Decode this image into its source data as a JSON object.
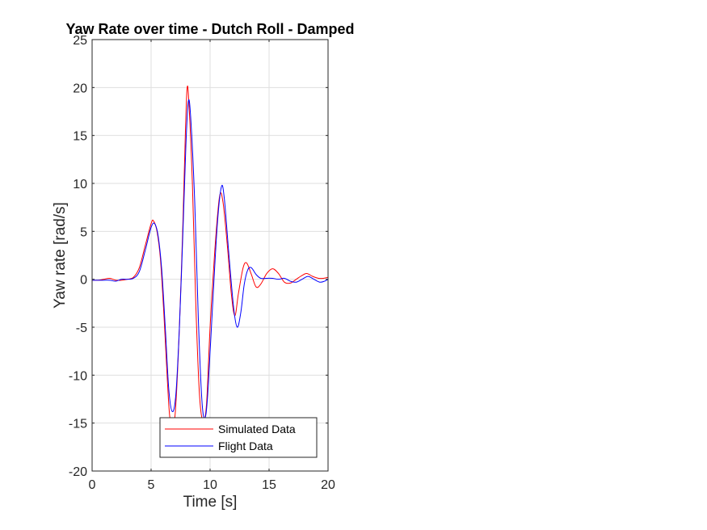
{
  "chart_data": {
    "type": "line",
    "title": "Yaw Rate over time - Dutch Roll - Damped",
    "xlabel": "Time [s]",
    "ylabel": "Yaw rate [rad/s]",
    "xlim": [
      0,
      20
    ],
    "ylim": [
      -20,
      25
    ],
    "xticks": [
      0,
      5,
      10,
      15,
      20
    ],
    "yticks": [
      -20,
      -15,
      -10,
      -5,
      0,
      5,
      10,
      15,
      20,
      25
    ],
    "grid": true,
    "legend_position": "bottom-center",
    "series": [
      {
        "name": "Simulated Data",
        "color": "#ff0000",
        "points": [
          [
            0,
            -0.1
          ],
          [
            0.5,
            -0.1
          ],
          [
            1,
            0
          ],
          [
            1.5,
            0.1
          ],
          [
            2,
            -0.1
          ],
          [
            2.5,
            -0.1
          ],
          [
            3,
            0
          ],
          [
            3.5,
            0.2
          ],
          [
            4,
            1.2
          ],
          [
            4.5,
            3.5
          ],
          [
            5,
            5.8
          ],
          [
            5.2,
            6.1
          ],
          [
            5.5,
            5.0
          ],
          [
            5.8,
            2.0
          ],
          [
            6.1,
            -4.0
          ],
          [
            6.4,
            -11.0
          ],
          [
            6.6,
            -14.5
          ],
          [
            6.9,
            -15.0
          ],
          [
            7.1,
            -13.0
          ],
          [
            7.4,
            -5.0
          ],
          [
            7.7,
            6.0
          ],
          [
            7.9,
            15.0
          ],
          [
            8.05,
            19.9
          ],
          [
            8.2,
            18.5
          ],
          [
            8.5,
            10.0
          ],
          [
            8.8,
            -3.0
          ],
          [
            9.1,
            -12.0
          ],
          [
            9.4,
            -14.8
          ],
          [
            9.7,
            -13.0
          ],
          [
            10.0,
            -5.0
          ],
          [
            10.4,
            3.0
          ],
          [
            10.8,
            8.6
          ],
          [
            11.1,
            8.0
          ],
          [
            11.5,
            3.0
          ],
          [
            11.8,
            -1.5
          ],
          [
            12.1,
            -3.8
          ],
          [
            12.4,
            -1.5
          ],
          [
            12.8,
            1.2
          ],
          [
            13.1,
            1.7
          ],
          [
            13.5,
            0.5
          ],
          [
            13.9,
            -0.8
          ],
          [
            14.3,
            -0.5
          ],
          [
            14.8,
            0.6
          ],
          [
            15.3,
            1.1
          ],
          [
            15.8,
            0.6
          ],
          [
            16.3,
            -0.3
          ],
          [
            16.8,
            -0.4
          ],
          [
            17.3,
            0.0
          ],
          [
            17.8,
            0.4
          ],
          [
            18.2,
            0.6
          ],
          [
            18.7,
            0.3
          ],
          [
            19.2,
            0.1
          ],
          [
            19.6,
            0.1
          ],
          [
            20,
            0.2
          ]
        ]
      },
      {
        "name": "Flight Data",
        "color": "#0000ff",
        "points": [
          [
            0,
            -0.1
          ],
          [
            0.5,
            -0.1
          ],
          [
            1,
            -0.1
          ],
          [
            1.5,
            -0.1
          ],
          [
            2,
            -0.2
          ],
          [
            2.5,
            0
          ],
          [
            3,
            0
          ],
          [
            3.5,
            0.1
          ],
          [
            4,
            0.8
          ],
          [
            4.5,
            3.0
          ],
          [
            5,
            5.4
          ],
          [
            5.3,
            5.8
          ],
          [
            5.6,
            4.5
          ],
          [
            5.9,
            1.0
          ],
          [
            6.2,
            -5.0
          ],
          [
            6.5,
            -11.5
          ],
          [
            6.8,
            -13.8
          ],
          [
            7.1,
            -12.0
          ],
          [
            7.4,
            -5.0
          ],
          [
            7.7,
            5.0
          ],
          [
            7.95,
            14.0
          ],
          [
            8.15,
            18.5
          ],
          [
            8.35,
            17.0
          ],
          [
            8.7,
            8.0
          ],
          [
            9.0,
            -4.0
          ],
          [
            9.3,
            -12.5
          ],
          [
            9.55,
            -14.5
          ],
          [
            9.8,
            -12.0
          ],
          [
            10.2,
            -3.0
          ],
          [
            10.6,
            5.5
          ],
          [
            10.95,
            9.6
          ],
          [
            11.2,
            8.5
          ],
          [
            11.6,
            2.5
          ],
          [
            12.0,
            -3.0
          ],
          [
            12.3,
            -5.0
          ],
          [
            12.6,
            -3.5
          ],
          [
            12.9,
            -0.5
          ],
          [
            13.2,
            1.0
          ],
          [
            13.5,
            1.2
          ],
          [
            13.9,
            0.5
          ],
          [
            14.3,
            0.1
          ],
          [
            14.8,
            0.1
          ],
          [
            15.3,
            0.1
          ],
          [
            15.8,
            0.0
          ],
          [
            16.3,
            0.1
          ],
          [
            16.8,
            -0.2
          ],
          [
            17.3,
            -0.3
          ],
          [
            17.8,
            0.0
          ],
          [
            18.3,
            0.3
          ],
          [
            18.8,
            0.0
          ],
          [
            19.3,
            -0.3
          ],
          [
            19.7,
            -0.2
          ],
          [
            20,
            0.0
          ]
        ]
      }
    ]
  }
}
